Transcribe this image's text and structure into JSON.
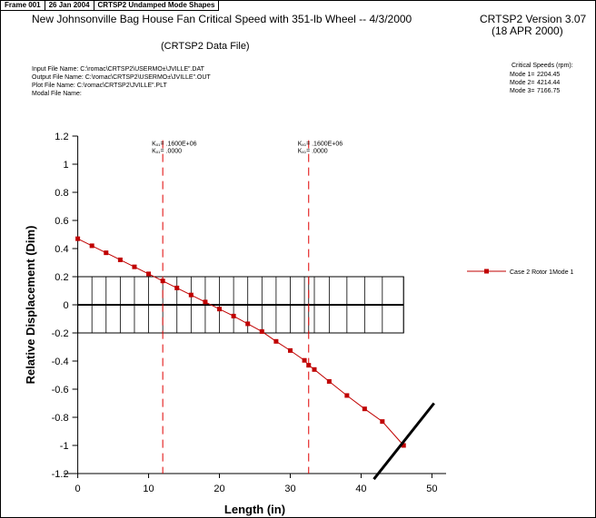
{
  "banner": {
    "frame": "Frame 001",
    "date": "26 Jan 2004",
    "title": "CRTSP2 Undamped Mode Shapes"
  },
  "header": {
    "title": "New Johnsonville Bag House Fan Critical Speed with 351-lb Wheel  --  4/3/2000",
    "program": "CRTSP2  Version 3.07",
    "program_date": "(18 APR 2000)",
    "data_file": "(CRTSP2 Data File)",
    "files": [
      "Input File Name:  C:\\romac\\CRTSP2\\USERMO±\\JVILLE”.DAT",
      "Output File Name:  C:\\romac\\CRTSP2\\USERMO±\\JVILLE”.OUT",
      "Plot File Name:  C:\\romac\\CRTSP2\\JVILLE”.PLT",
      "Modal File Name:"
    ],
    "crit_title": "Critical Speeds (rpm):",
    "modes": [
      {
        "label": "Mode  1=",
        "value": "2204.45"
      },
      {
        "label": "Mode  2=",
        "value": "4214.44"
      },
      {
        "label": "Mode  3=",
        "value": "7166.75"
      }
    ]
  },
  "chart_data": {
    "type": "line",
    "xlabel": "Length (in)",
    "ylabel": "Relative Displacement (Dim)",
    "xlim": [
      -2,
      52
    ],
    "ylim": [
      -1.2,
      1.2
    ],
    "xticks": [
      0,
      10,
      20,
      30,
      40,
      50
    ],
    "yticks": [
      1.2,
      1,
      0.8,
      0.6,
      0.4,
      0.2,
      0,
      -0.2,
      -0.4,
      -0.6,
      -0.8,
      -1,
      -1.2
    ],
    "ytick_labels": [
      "1.2",
      "1",
      "0.8",
      "0.6",
      "0.4",
      "0.2",
      "0",
      "-0.2",
      "-0.4",
      "-0.6",
      "-0.8",
      "-1",
      "-1.2"
    ],
    "series": [
      {
        "name": "Case 2 Rotor 1Mode  1",
        "color": "#c00000",
        "x": [
          0,
          2,
          4,
          6,
          8,
          10,
          12,
          14,
          16,
          18,
          20,
          22,
          24,
          26,
          28,
          30,
          32,
          32.6,
          33.4,
          35.5,
          38,
          40.5,
          43,
          46
        ],
        "y": [
          0.47,
          0.42,
          0.37,
          0.32,
          0.27,
          0.22,
          0.17,
          0.12,
          0.07,
          0.02,
          -0.03,
          -0.08,
          -0.135,
          -0.19,
          -0.26,
          -0.325,
          -0.395,
          -0.43,
          -0.46,
          -0.545,
          -0.645,
          -0.74,
          -0.83,
          -1.0
        ]
      }
    ],
    "bearings": [
      {
        "x": 12,
        "k1": "Kₓ₁= .1600E+06",
        "k2": "Kₓ₁= .0000"
      },
      {
        "x": 32.6,
        "k1": "Kₓ₁= .1600E+06",
        "k2": "Kₓ₁= .0000"
      }
    ],
    "rotor_stations": [
      0,
      2,
      4,
      6,
      8,
      10,
      12,
      14,
      16,
      18,
      20,
      22,
      24,
      26,
      28,
      30,
      32,
      32.6,
      33.4,
      35.5,
      38,
      40.5,
      43,
      46
    ],
    "rotor_radius": 0.2,
    "slash": {
      "x": [
        41.8,
        50.3
      ],
      "y": [
        -1.24,
        -0.7
      ]
    },
    "legend_position": "right",
    "grid": false
  }
}
